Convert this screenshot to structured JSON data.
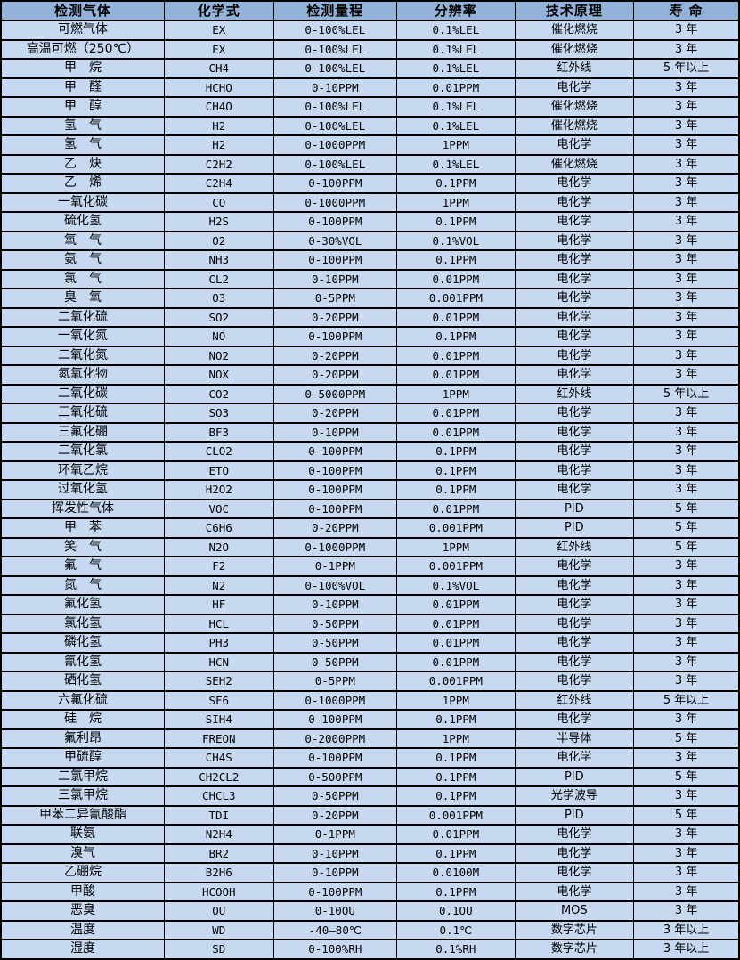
{
  "table": {
    "columns": [
      "检测气体",
      "化学式",
      "检测量程",
      "分辨率",
      "技术原理",
      "寿 命"
    ],
    "column_keys": [
      "gas-name",
      "chemical-formula",
      "detection-range",
      "resolution",
      "technology-principle",
      "lifespan"
    ],
    "rows": [
      [
        "可燃气体",
        "EX",
        "0-100%LEL",
        "0.1%LEL",
        "催化燃烧",
        "3 年"
      ],
      [
        "高温可燃（250℃）",
        "EX",
        "0-100%LEL",
        "0.1%LEL",
        "催化燃烧",
        "3 年"
      ],
      [
        "甲　烷",
        "CH4",
        "0-100%LEL",
        "0.1%LEL",
        "红外线",
        "5 年以上"
      ],
      [
        "甲　醛",
        "HCHO",
        "0-10PPM",
        "0.01PPM",
        "电化学",
        "3 年"
      ],
      [
        "甲　醇",
        "CH4O",
        "0-100%LEL",
        "0.1%LEL",
        "催化燃烧",
        "3 年"
      ],
      [
        "氢　气",
        "H2",
        "0-100%LEL",
        "0.1%LEL",
        "催化燃烧",
        "3 年"
      ],
      [
        "氢　气",
        "H2",
        "0-1000PPM",
        "1PPM",
        "电化学",
        "3 年"
      ],
      [
        "乙　炔",
        "C2H2",
        "0-100%LEL",
        "0.1%LEL",
        "催化燃烧",
        "3 年"
      ],
      [
        "乙　烯",
        "C2H4",
        "0-100PPM",
        "0.1PPM",
        "电化学",
        "3 年"
      ],
      [
        "一氧化碳",
        "CO",
        "0-1000PPM",
        "1PPM",
        "电化学",
        "3 年"
      ],
      [
        "硫化氢",
        "H2S",
        "0-100PPM",
        "0.1PPM",
        "电化学",
        "3 年"
      ],
      [
        "氧　气",
        "O2",
        "0-30%VOL",
        "0.1%VOL",
        "电化学",
        "3 年"
      ],
      [
        "氨　气",
        "NH3",
        "0-100PPM",
        "0.1PPM",
        "电化学",
        "3 年"
      ],
      [
        "氯　气",
        "CL2",
        "0-10PPM",
        "0.01PPM",
        "电化学",
        "3 年"
      ],
      [
        "臭　氧",
        "O3",
        "0-5PPM",
        "0.001PPM",
        "电化学",
        "3 年"
      ],
      [
        "二氧化硫",
        "SO2",
        "0-20PPM",
        "0.01PPM",
        "电化学",
        "3 年"
      ],
      [
        "一氧化氮",
        "NO",
        "0-100PPM",
        "0.1PPM",
        "电化学",
        "3 年"
      ],
      [
        "二氧化氮",
        "NO2",
        "0-20PPM",
        "0.01PPM",
        "电化学",
        "3 年"
      ],
      [
        "氮氧化物",
        "NOX",
        "0-20PPM",
        "0.01PPM",
        "电化学",
        "3 年"
      ],
      [
        "二氧化碳",
        "CO2",
        "0-5000PPM",
        "1PPM",
        "红外线",
        "5 年以上"
      ],
      [
        "三氧化硫",
        "SO3",
        "0-20PPM",
        "0.01PPM",
        "电化学",
        "3 年"
      ],
      [
        "三氟化硼",
        "BF3",
        "0-10PPM",
        "0.01PPM",
        "电化学",
        "3 年"
      ],
      [
        "二氧化氯",
        "CLO2",
        "0-100PPM",
        "0.1PPM",
        "电化学",
        "3 年"
      ],
      [
        "环氧乙烷",
        "ETO",
        "0-100PPM",
        "0.1PPM",
        "电化学",
        "3 年"
      ],
      [
        "过氧化氢",
        "H2O2",
        "0-100PPM",
        "0.1PPM",
        "电化学",
        "3 年"
      ],
      [
        "挥发性气体",
        "VOC",
        "0-100PPM",
        "0.01PPM",
        "PID",
        "5 年"
      ],
      [
        "甲　苯",
        "C6H6",
        "0-20PPM",
        "0.001PPM",
        "PID",
        "5 年"
      ],
      [
        "笑　气",
        "N2O",
        "0-1000PPM",
        "1PPM",
        "红外线",
        "5 年"
      ],
      [
        "氟　气",
        "F2",
        "0-1PPM",
        "0.001PPM",
        "电化学",
        "3 年"
      ],
      [
        "氮　气",
        "N2",
        "0-100%VOL",
        "0.1%VOL",
        "电化学",
        "3 年"
      ],
      [
        "氟化氢",
        "HF",
        "0-10PPM",
        "0.01PPM",
        "电化学",
        "3 年"
      ],
      [
        "氯化氢",
        "HCL",
        "0-50PPM",
        "0.01PPM",
        "电化学",
        "3 年"
      ],
      [
        "磷化氢",
        "PH3",
        "0-50PPM",
        "0.01PPM",
        "电化学",
        "3 年"
      ],
      [
        "氰化氢",
        "HCN",
        "0-50PPM",
        "0.01PPM",
        "电化学",
        "3 年"
      ],
      [
        "硒化氢",
        "SEH2",
        "0-5PPM",
        "0.001PPM",
        "电化学",
        "3 年"
      ],
      [
        "六氟化硫",
        "SF6",
        "0-1000PPM",
        "1PPM",
        "红外线",
        "5 年以上"
      ],
      [
        "硅　烷",
        "SIH4",
        "0-100PPM",
        "0.1PPM",
        "电化学",
        "3 年"
      ],
      [
        "氟利昂",
        "FREON",
        "0-2000PPM",
        "1PPM",
        "半导体",
        "5 年"
      ],
      [
        "甲硫醇",
        "CH4S",
        "0-100PPM",
        "0.1PPM",
        "电化学",
        "3 年"
      ],
      [
        "二氯甲烷",
        "CH2CL2",
        "0-500PPM",
        "0.1PPM",
        "PID",
        "5 年"
      ],
      [
        "三氯甲烷",
        "CHCL3",
        "0-50PPM",
        "0.1PPM",
        "光学波导",
        "3 年"
      ],
      [
        "甲苯二异氰酸酯",
        "TDI",
        "0-20PPM",
        "0.001PPM",
        "PID",
        "5 年"
      ],
      [
        "联氨",
        "N2H4",
        "0-1PPM",
        "0.01PPM",
        "电化学",
        "3 年"
      ],
      [
        "溴气",
        "BR2",
        "0-10PPM",
        "0.1PPM",
        "电化学",
        "3 年"
      ],
      [
        "乙硼烷",
        "B2H6",
        "0-10PPM",
        "0.0100M",
        "电化学",
        "3 年"
      ],
      [
        "甲酸",
        "HCOOH",
        "0-100PPM",
        "0.1PPM",
        "电化学",
        "3 年"
      ],
      [
        "恶臭",
        "OU",
        "0-10OU",
        "0.1OU",
        "MOS",
        "3 年"
      ],
      [
        "温度",
        "WD",
        "-40—80℃",
        "0.1℃",
        "数字芯片",
        "3 年以上"
      ],
      [
        "湿度",
        "SD",
        "0-100%RH",
        "0.1%RH",
        "数字芯片",
        "3 年以上"
      ]
    ]
  },
  "colors": {
    "header_bg": "#93b2da",
    "row_bg": "#c6d9f1",
    "border": "#000000",
    "text": "#000000"
  }
}
